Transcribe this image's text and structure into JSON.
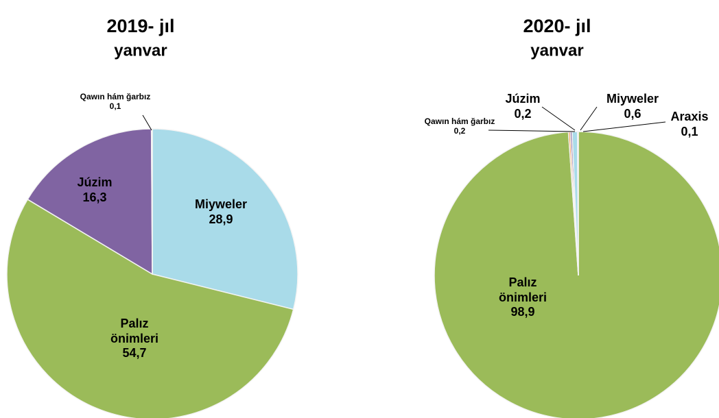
{
  "chart_data": [
    {
      "type": "pie",
      "title": "2019- jıl",
      "subtitle": "yanvar",
      "categories": [
        "Miyweler",
        "Palız önimleri",
        "Júzim",
        "Qawın hám ğarbız"
      ],
      "values": [
        28.9,
        54.7,
        16.3,
        0.1
      ],
      "value_labels": [
        "28,9",
        "54,7",
        "16,3",
        "0,1"
      ],
      "colors": [
        "#a9dbe9",
        "#9bbb59",
        "#8064a2",
        "#f79646"
      ]
    },
    {
      "type": "pie",
      "title": "2020- jıl",
      "subtitle": "yanvar",
      "categories": [
        "Palız önimleri",
        "Qawın hám ğarbız",
        "Júzim",
        "Miyweler",
        "Araxis"
      ],
      "values": [
        98.9,
        0.2,
        0.2,
        0.6,
        0.1
      ],
      "value_labels": [
        "98,9",
        "0,2",
        "0,2",
        "0,6",
        "0,1"
      ],
      "colors": [
        "#9bbb59",
        "#f79646",
        "#8064a2",
        "#a9dbe9",
        "#c0504d"
      ]
    }
  ]
}
